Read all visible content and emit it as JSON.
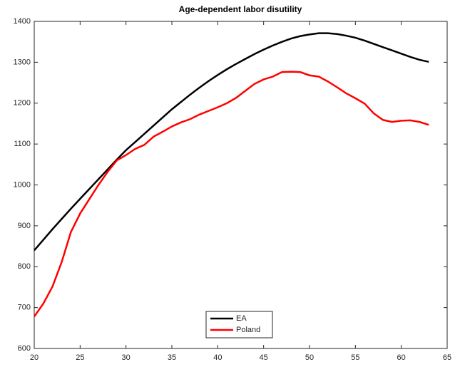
{
  "chart_data": {
    "type": "line",
    "title": "Age-dependent labor disutility",
    "x": [
      20,
      21,
      22,
      23,
      24,
      25,
      26,
      27,
      28,
      29,
      30,
      31,
      32,
      33,
      34,
      35,
      36,
      37,
      38,
      39,
      40,
      41,
      42,
      43,
      44,
      45,
      46,
      47,
      48,
      49,
      50,
      51,
      52,
      53,
      54,
      55,
      56,
      57,
      58,
      59,
      60,
      61,
      62,
      63
    ],
    "series": [
      {
        "name": "EA",
        "color": "#000000",
        "values": [
          840,
          866,
          892,
          917,
          942,
          966,
          990,
          1014,
          1038,
          1062,
          1085,
          1105,
          1125,
          1145,
          1165,
          1185,
          1203,
          1221,
          1238,
          1254,
          1269,
          1283,
          1296,
          1308,
          1320,
          1331,
          1341,
          1350,
          1358,
          1364,
          1368,
          1371,
          1371,
          1369,
          1365,
          1360,
          1353,
          1345,
          1337,
          1329,
          1321,
          1313,
          1306,
          1301
        ]
      },
      {
        "name": "Poland",
        "color": "#ff0000",
        "values": [
          678,
          710,
          752,
          812,
          885,
          930,
          965,
          1000,
          1032,
          1060,
          1073,
          1088,
          1098,
          1118,
          1130,
          1143,
          1153,
          1161,
          1172,
          1181,
          1190,
          1200,
          1213,
          1230,
          1247,
          1258,
          1265,
          1276,
          1277,
          1276,
          1268,
          1265,
          1253,
          1239,
          1224,
          1212,
          1199,
          1175,
          1159,
          1154,
          1157,
          1158,
          1154,
          1147
        ]
      }
    ],
    "xlim": [
      20,
      65
    ],
    "xticks": [
      20,
      25,
      30,
      35,
      40,
      45,
      50,
      55,
      60,
      65
    ],
    "ylim": [
      600,
      1400
    ],
    "yticks": [
      600,
      700,
      800,
      900,
      1000,
      1100,
      1200,
      1300,
      1400
    ],
    "legend": "bottom"
  }
}
